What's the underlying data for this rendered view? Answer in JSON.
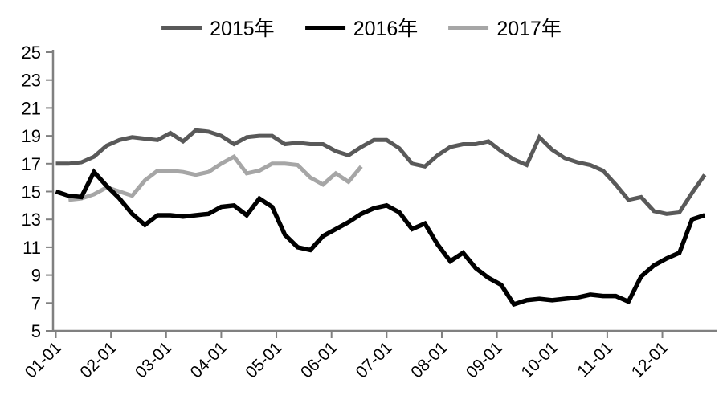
{
  "legend": {
    "items": [
      {
        "label": "2015年",
        "color": "#595959"
      },
      {
        "label": "2016年",
        "color": "#000000"
      },
      {
        "label": "2017年",
        "color": "#a6a6a6"
      }
    ]
  },
  "chart_data": {
    "type": "line",
    "title": "",
    "xlabel": "",
    "ylabel": "",
    "categories": [
      "01-01",
      "02-01",
      "03-01",
      "04-01",
      "05-01",
      "06-01",
      "07-01",
      "08-01",
      "09-01",
      "10-01",
      "11-01",
      "12-01"
    ],
    "x_unit": "weekly points across monthly ticks",
    "ylim": [
      5,
      25
    ],
    "y_ticks": [
      5,
      7,
      9,
      11,
      13,
      15,
      17,
      19,
      21,
      23,
      25
    ],
    "grid": false,
    "legend_position": "top",
    "axis_color": "#808080",
    "tick_label_color": "#000000",
    "series": [
      {
        "name": "2015年",
        "color": "#595959",
        "start_week": 0,
        "values": [
          17.0,
          17.0,
          17.1,
          17.5,
          18.3,
          18.7,
          18.9,
          18.8,
          18.7,
          19.2,
          18.6,
          19.4,
          19.3,
          19.0,
          18.4,
          18.9,
          19.0,
          19.0,
          18.4,
          18.5,
          18.4,
          18.4,
          17.9,
          17.6,
          18.2,
          18.7,
          18.7,
          18.1,
          17.0,
          16.8,
          17.6,
          18.2,
          18.4,
          18.4,
          18.6,
          17.9,
          17.3,
          16.9,
          18.9,
          18.0,
          17.4,
          17.1,
          16.9,
          16.5,
          15.5,
          14.4,
          14.6,
          13.6,
          13.4,
          13.5,
          14.9,
          16.2
        ]
      },
      {
        "name": "2016年",
        "color": "#000000",
        "start_week": 0,
        "values": [
          15.0,
          14.7,
          14.6,
          16.4,
          15.4,
          14.5,
          13.4,
          12.6,
          13.3,
          13.3,
          13.2,
          13.3,
          13.4,
          13.9,
          14.0,
          13.3,
          14.5,
          13.9,
          11.9,
          11.0,
          10.8,
          11.8,
          12.3,
          12.8,
          13.4,
          13.8,
          14.0,
          13.5,
          12.3,
          12.7,
          11.2,
          10.0,
          10.6,
          9.5,
          8.8,
          8.3,
          6.9,
          7.2,
          7.3,
          7.2,
          7.3,
          7.4,
          7.6,
          7.5,
          7.5,
          7.1,
          8.9,
          9.7,
          10.2,
          10.6,
          13.0,
          13.3
        ]
      },
      {
        "name": "2017年",
        "color": "#a6a6a6",
        "start_week": 1,
        "values": [
          14.4,
          14.5,
          14.8,
          15.3,
          15.0,
          14.7,
          15.8,
          16.5,
          16.5,
          16.4,
          16.2,
          16.4,
          17.0,
          17.5,
          16.3,
          16.5,
          17.0,
          17.0,
          16.9,
          16.0,
          15.5,
          16.3,
          15.7,
          16.8
        ]
      }
    ]
  }
}
